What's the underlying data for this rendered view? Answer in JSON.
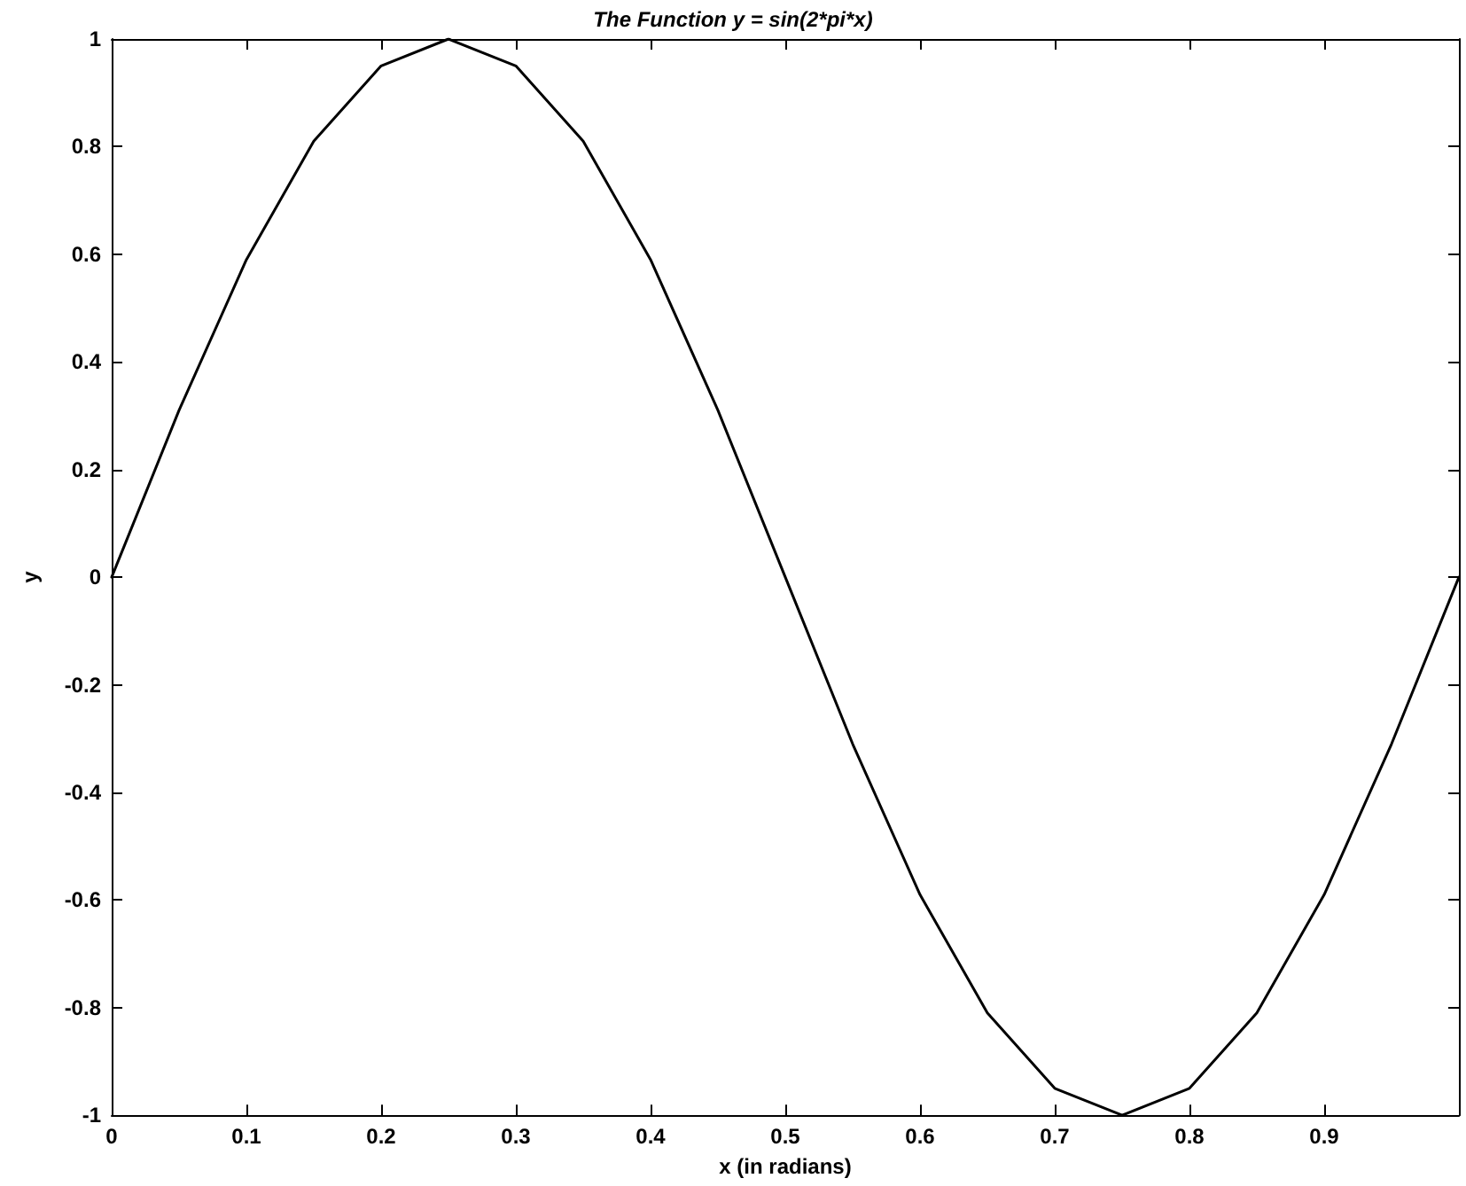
{
  "chart_data": {
    "type": "line",
    "title": "The Function y = sin(2*pi*x)",
    "xlabel": "x (in radians)",
    "ylabel": "y",
    "x": [
      0,
      0.05,
      0.1,
      0.15,
      0.2,
      0.25,
      0.3,
      0.35,
      0.4,
      0.45,
      0.5,
      0.55,
      0.6,
      0.65,
      0.7,
      0.75,
      0.8,
      0.85,
      0.9,
      0.95,
      1
    ],
    "series": [
      {
        "color": "#000000",
        "values": [
          0,
          0.31,
          0.59,
          0.81,
          0.95,
          1,
          0.95,
          0.81,
          0.59,
          0.31,
          0,
          -0.31,
          -0.59,
          -0.81,
          -0.95,
          -1,
          -0.95,
          -0.81,
          -0.59,
          -0.31,
          0
        ]
      }
    ],
    "xlim": [
      0,
      1
    ],
    "xticks": [
      0,
      0.1,
      0.2,
      0.3,
      0.4,
      0.5,
      0.6,
      0.7,
      0.8,
      0.9
    ],
    "ylim": [
      -1,
      1
    ],
    "yticks": [
      -1,
      -0.8,
      -0.6,
      -0.4,
      -0.2,
      0,
      0.2,
      0.4,
      0.6,
      0.8,
      1
    ],
    "grid": false,
    "marker": "none",
    "line_style": "solid"
  }
}
